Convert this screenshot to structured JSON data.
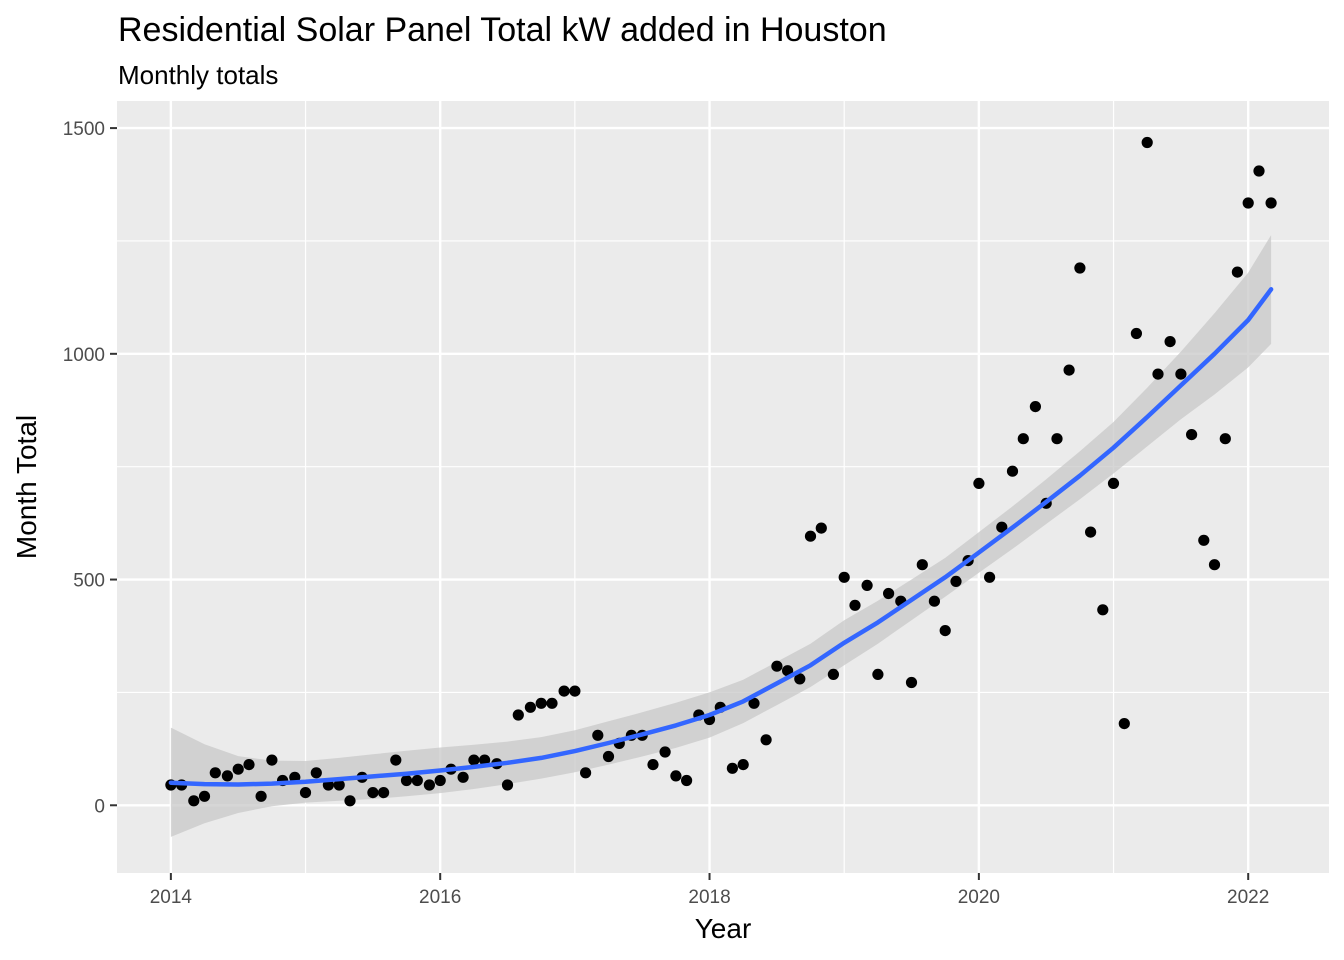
{
  "chart_data": {
    "type": "scatter",
    "title": "Residential Solar Panel Total kW added in Houston",
    "subtitle": "Monthly totals",
    "xlabel": "Year",
    "ylabel": "Month Total",
    "xlim": [
      2013.6,
      2022.6
    ],
    "ylim": [
      -150,
      1560
    ],
    "x_ticks": [
      2014,
      2016,
      2018,
      2020,
      2022
    ],
    "y_ticks": [
      0,
      500,
      1000,
      1500
    ],
    "grid": true,
    "legend": "none",
    "colors": {
      "panel": "#EBEBEB",
      "grid_major": "#FFFFFF",
      "points": "#000000",
      "smooth_line": "#3366FF",
      "confidence_band": "#C8C8C8"
    },
    "series": [
      {
        "type": "scatter",
        "points": [
          {
            "x": 2014.0,
            "y": 45
          },
          {
            "x": 2014.08,
            "y": 45
          },
          {
            "x": 2014.17,
            "y": 10
          },
          {
            "x": 2014.25,
            "y": 20
          },
          {
            "x": 2014.33,
            "y": 72
          },
          {
            "x": 2014.42,
            "y": 65
          },
          {
            "x": 2014.5,
            "y": 80
          },
          {
            "x": 2014.58,
            "y": 90
          },
          {
            "x": 2014.67,
            "y": 20
          },
          {
            "x": 2014.75,
            "y": 100
          },
          {
            "x": 2014.83,
            "y": 55
          },
          {
            "x": 2014.92,
            "y": 62
          },
          {
            "x": 2015.0,
            "y": 28
          },
          {
            "x": 2015.08,
            "y": 72
          },
          {
            "x": 2015.17,
            "y": 45
          },
          {
            "x": 2015.25,
            "y": 45
          },
          {
            "x": 2015.33,
            "y": 10
          },
          {
            "x": 2015.42,
            "y": 62
          },
          {
            "x": 2015.5,
            "y": 28
          },
          {
            "x": 2015.58,
            "y": 28
          },
          {
            "x": 2015.67,
            "y": 100
          },
          {
            "x": 2015.75,
            "y": 55
          },
          {
            "x": 2015.83,
            "y": 55
          },
          {
            "x": 2015.92,
            "y": 45
          },
          {
            "x": 2016.0,
            "y": 55
          },
          {
            "x": 2016.08,
            "y": 80
          },
          {
            "x": 2016.17,
            "y": 62
          },
          {
            "x": 2016.25,
            "y": 100
          },
          {
            "x": 2016.33,
            "y": 100
          },
          {
            "x": 2016.42,
            "y": 92
          },
          {
            "x": 2016.5,
            "y": 45
          },
          {
            "x": 2016.58,
            "y": 200
          },
          {
            "x": 2016.67,
            "y": 217
          },
          {
            "x": 2016.75,
            "y": 226
          },
          {
            "x": 2016.83,
            "y": 226
          },
          {
            "x": 2016.92,
            "y": 253
          },
          {
            "x": 2017.0,
            "y": 253
          },
          {
            "x": 2017.08,
            "y": 72
          },
          {
            "x": 2017.17,
            "y": 155
          },
          {
            "x": 2017.25,
            "y": 108
          },
          {
            "x": 2017.33,
            "y": 137
          },
          {
            "x": 2017.42,
            "y": 155
          },
          {
            "x": 2017.5,
            "y": 155
          },
          {
            "x": 2017.58,
            "y": 90
          },
          {
            "x": 2017.67,
            "y": 118
          },
          {
            "x": 2017.75,
            "y": 65
          },
          {
            "x": 2017.83,
            "y": 55
          },
          {
            "x": 2017.92,
            "y": 200
          },
          {
            "x": 2018.0,
            "y": 190
          },
          {
            "x": 2018.08,
            "y": 217
          },
          {
            "x": 2018.17,
            "y": 82
          },
          {
            "x": 2018.25,
            "y": 90
          },
          {
            "x": 2018.33,
            "y": 226
          },
          {
            "x": 2018.42,
            "y": 145
          },
          {
            "x": 2018.5,
            "y": 308
          },
          {
            "x": 2018.58,
            "y": 298
          },
          {
            "x": 2018.67,
            "y": 280
          },
          {
            "x": 2018.75,
            "y": 596
          },
          {
            "x": 2018.83,
            "y": 614
          },
          {
            "x": 2018.92,
            "y": 290
          },
          {
            "x": 2019.0,
            "y": 505
          },
          {
            "x": 2019.08,
            "y": 443
          },
          {
            "x": 2019.17,
            "y": 487
          },
          {
            "x": 2019.25,
            "y": 290
          },
          {
            "x": 2019.33,
            "y": 469
          },
          {
            "x": 2019.42,
            "y": 452
          },
          {
            "x": 2019.5,
            "y": 272
          },
          {
            "x": 2019.58,
            "y": 533
          },
          {
            "x": 2019.67,
            "y": 452
          },
          {
            "x": 2019.75,
            "y": 387
          },
          {
            "x": 2019.83,
            "y": 496
          },
          {
            "x": 2019.92,
            "y": 542
          },
          {
            "x": 2020.0,
            "y": 713
          },
          {
            "x": 2020.08,
            "y": 505
          },
          {
            "x": 2020.17,
            "y": 616
          },
          {
            "x": 2020.25,
            "y": 740
          },
          {
            "x": 2020.33,
            "y": 812
          },
          {
            "x": 2020.42,
            "y": 883
          },
          {
            "x": 2020.5,
            "y": 669
          },
          {
            "x": 2020.58,
            "y": 812
          },
          {
            "x": 2020.67,
            "y": 964
          },
          {
            "x": 2020.75,
            "y": 1190
          },
          {
            "x": 2020.83,
            "y": 605
          },
          {
            "x": 2020.92,
            "y": 433
          },
          {
            "x": 2021.0,
            "y": 713
          },
          {
            "x": 2021.08,
            "y": 181
          },
          {
            "x": 2021.17,
            "y": 1045
          },
          {
            "x": 2021.25,
            "y": 1468
          },
          {
            "x": 2021.33,
            "y": 955
          },
          {
            "x": 2021.42,
            "y": 1027
          },
          {
            "x": 2021.5,
            "y": 955
          },
          {
            "x": 2021.58,
            "y": 821
          },
          {
            "x": 2021.67,
            "y": 587
          },
          {
            "x": 2021.75,
            "y": 533
          },
          {
            "x": 2021.83,
            "y": 812
          },
          {
            "x": 2021.92,
            "y": 1181
          },
          {
            "x": 2022.0,
            "y": 1334
          },
          {
            "x": 2022.08,
            "y": 1405
          },
          {
            "x": 2022.17,
            "y": 1334
          }
        ]
      },
      {
        "type": "smooth",
        "x": [
          2014.0,
          2014.25,
          2014.5,
          2014.75,
          2015.0,
          2015.25,
          2015.5,
          2015.75,
          2016.0,
          2016.25,
          2016.5,
          2016.75,
          2017.0,
          2017.25,
          2017.5,
          2017.75,
          2018.0,
          2018.25,
          2018.5,
          2018.75,
          2019.0,
          2019.25,
          2019.5,
          2019.75,
          2020.0,
          2020.25,
          2020.5,
          2020.75,
          2021.0,
          2021.25,
          2021.5,
          2021.75,
          2022.0,
          2022.17
        ],
        "y": [
          50,
          47,
          46,
          48,
          52,
          58,
          64,
          70,
          77,
          85,
          94,
          105,
          120,
          138,
          157,
          177,
          200,
          230,
          270,
          310,
          360,
          405,
          455,
          505,
          560,
          615,
          672,
          730,
          792,
          860,
          930,
          1000,
          1075,
          1143
        ],
        "lower": [
          -70,
          -40,
          -17,
          -2,
          6,
          10,
          14,
          20,
          27,
          36,
          47,
          59,
          73,
          90,
          108,
          127,
          150,
          182,
          222,
          262,
          310,
          358,
          410,
          462,
          515,
          568,
          623,
          678,
          735,
          795,
          855,
          910,
          970,
          1022
        ],
        "upper": [
          172,
          135,
          109,
          99,
          98,
          105,
          113,
          121,
          128,
          134,
          141,
          151,
          166,
          186,
          206,
          227,
          250,
          278,
          318,
          358,
          410,
          453,
          500,
          548,
          605,
          662,
          722,
          784,
          849,
          925,
          1005,
          1090,
          1180,
          1263
        ]
      }
    ]
  }
}
